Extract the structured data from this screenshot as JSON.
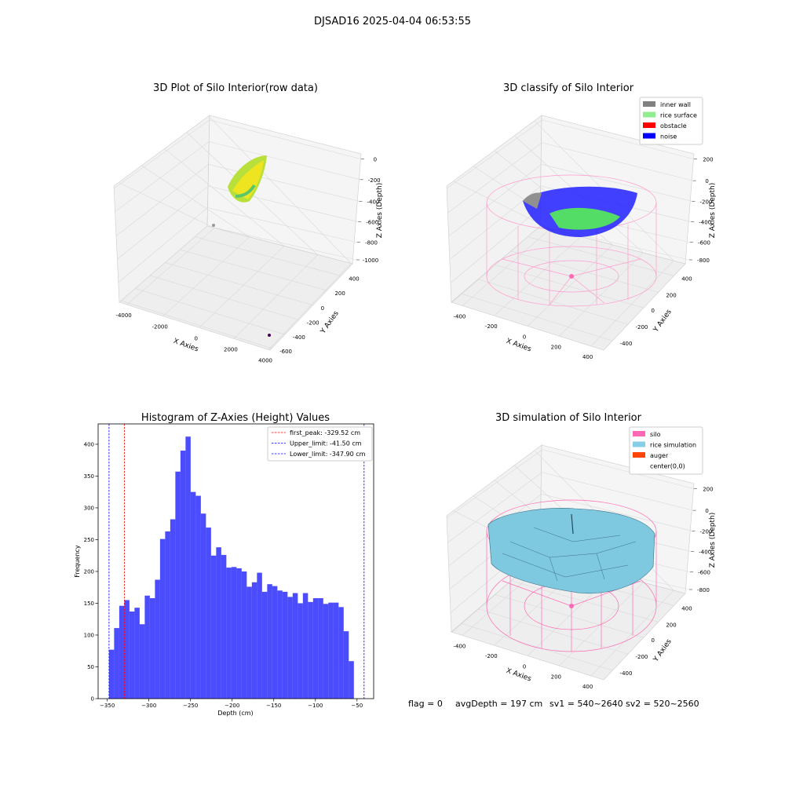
{
  "suptitle": "DJSAD16 2025-04-04 06:53:55",
  "panels": {
    "raw": {
      "title": "3D Plot of Silo Interior(row data)",
      "xlabel": "X Axies",
      "ylabel": "Y Axies",
      "zlabel": "Z Axies (Depth)",
      "xticks": [
        "-4000",
        "-2000",
        "0",
        "2000",
        "4000"
      ],
      "yticks": [
        "400",
        "200",
        "0",
        "-200",
        "-400",
        "-600"
      ],
      "zticks": [
        "0",
        "-200",
        "-400",
        "-600",
        "-800",
        "-1000"
      ]
    },
    "classify": {
      "title": "3D classify of Silo Interior",
      "xlabel": "X Axies",
      "ylabel": "Y Axies",
      "zlabel": "Z Axies (Depth)",
      "xticks": [
        "-400",
        "-200",
        "0",
        "200",
        "400"
      ],
      "yticks": [
        "400",
        "200",
        "0",
        "-200",
        "-400"
      ],
      "zticks": [
        "200",
        "0",
        "-200",
        "-400",
        "-600",
        "-800"
      ],
      "legend": [
        {
          "label": "inner wall",
          "color": "#808080"
        },
        {
          "label": "rice surface",
          "color": "#90ee90"
        },
        {
          "label": "obstacle",
          "color": "#ff0000"
        },
        {
          "label": "noise",
          "color": "#0000ff"
        }
      ]
    },
    "simulation": {
      "title": "3D simulation of Silo Interior",
      "xlabel": "X Axies",
      "ylabel": "Y Axies",
      "zlabel": "Z Axies (Depth)",
      "xticks": [
        "-400",
        "-200",
        "0",
        "200",
        "400"
      ],
      "yticks": [
        "400",
        "200",
        "0",
        "-200",
        "-400"
      ],
      "zticks": [
        "200",
        "0",
        "-200",
        "-400",
        "-600",
        "-800"
      ],
      "legend": [
        {
          "label": "silo",
          "color": "#ff69b4"
        },
        {
          "label": "rice simulation",
          "color": "#87ceeb"
        },
        {
          "label": "auger",
          "color": "#ff4500"
        },
        {
          "label": "center(0,0)",
          "color": "#ffffff"
        }
      ]
    }
  },
  "status": {
    "flag": "flag = 0",
    "avg_depth": "avgDepth = 197 cm",
    "sv1": "sv1 = 540~2640",
    "sv2": "sv2 = 520~2560"
  },
  "chart_data": {
    "type": "bar",
    "title": "Histogram of Z-Axies (Height) Values",
    "xlabel": "Depth (cm)",
    "ylabel": "Frequency",
    "xlim": [
      -361,
      -30
    ],
    "ylim": [
      0,
      432
    ],
    "xticks": [
      -350,
      -300,
      -250,
      -200,
      -150,
      -100,
      -50
    ],
    "xtick_labels": [
      "−350",
      "−300",
      "−250",
      "−200",
      "−150",
      "−100",
      "−50"
    ],
    "yticks": [
      0,
      50,
      100,
      150,
      200,
      250,
      300,
      350,
      400
    ],
    "bin_start": -347.9,
    "bin_width": 6.128,
    "values": [
      77,
      111,
      146,
      155,
      137,
      143,
      117,
      162,
      158,
      187,
      251,
      263,
      282,
      357,
      390,
      412,
      325,
      319,
      291,
      269,
      225,
      238,
      226,
      206,
      207,
      205,
      200,
      176,
      183,
      198,
      168,
      180,
      177,
      170,
      168,
      160,
      166,
      150,
      166,
      152,
      158,
      158,
      149,
      151,
      151,
      144,
      106,
      59
    ],
    "color": "#0000ff",
    "lines": [
      {
        "label": "first_peak: -329.52 cm",
        "x": -329.52,
        "color": "#ff0000"
      },
      {
        "label": "Upper_limit: -41.50 cm",
        "x": -41.5,
        "color": "#0000ff"
      },
      {
        "label": "Lower_limit: -347.90 cm",
        "x": -347.9,
        "color": "#0000ff"
      }
    ],
    "legend_position": "top-right"
  }
}
